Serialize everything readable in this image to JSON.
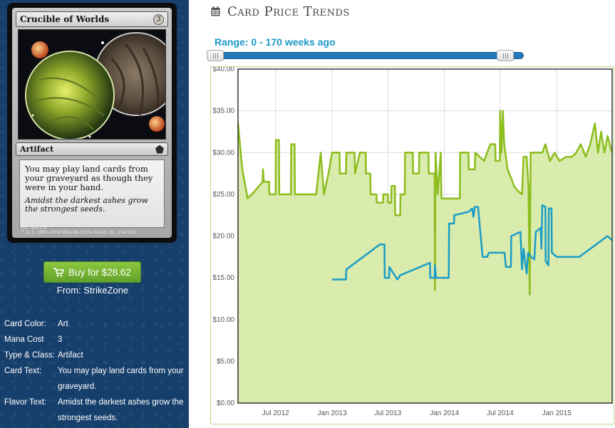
{
  "card": {
    "name": "Crucible of Worlds",
    "mana": "3",
    "type_line": "Artifact",
    "rules_text": "You may play land cards from your graveyard as though they were in your hand.",
    "flavor_text": "Amidst the darkest ashes grow the strongest seeds.",
    "artist": "Ron Spencer",
    "copyright": "™ & © 1993–2004 Wizards of the Coast, Inc. 114/165"
  },
  "buy": {
    "label": "Buy for $28.62",
    "icon": "cart-icon",
    "from": "From: StrikeZone"
  },
  "details": [
    {
      "label": "Card Color:",
      "value": "Art"
    },
    {
      "label": "Mana Cost",
      "value": "3"
    },
    {
      "label": "Type & Class:",
      "value": "Artifact"
    },
    {
      "label": "Card Text:",
      "value": "You may play land cards from your graveyard."
    },
    {
      "label": "Flavor Text:",
      "value": "Amidst the darkest ashes grow the strongest seeds."
    }
  ],
  "heading": {
    "title": "Card Price Trends",
    "icon": "calendar-icon"
  },
  "range": {
    "label": "Range: 0 - 170 weeks ago",
    "min": 0,
    "max": 170,
    "low": 0,
    "high": 170
  },
  "colors": {
    "green_series": "#8cbd1c",
    "green_fill": "#d4e8a2",
    "blue_series": "#1b9dc6",
    "button": "#6fb232",
    "range_text": "#1997c6"
  },
  "chart_data": {
    "type": "line",
    "x_ticks": [
      "Jul 2012",
      "Jan 2013",
      "Jul 2013",
      "Jan 2014",
      "Jul 2014",
      "Jan 2015"
    ],
    "xlim": [
      "2012-03-01",
      "2015-06-30"
    ],
    "y_ticks": [
      "$0.00",
      "$5.00",
      "$10.00",
      "$15.00",
      "$20.00",
      "$25.00",
      "$30.00",
      "$35.00",
      "$40.00"
    ],
    "ylim": [
      0,
      40
    ],
    "grid": true,
    "series": [
      {
        "color": "#8cbd1c",
        "fill": "#d4e8a2",
        "points": [
          [
            "2012-03-01",
            33.5
          ],
          [
            "2012-03-15",
            28.0
          ],
          [
            "2012-04-01",
            24.5
          ],
          [
            "2012-04-20",
            25.2
          ],
          [
            "2012-05-20",
            26.5
          ],
          [
            "2012-05-21",
            28.0
          ],
          [
            "2012-05-24",
            26.5
          ],
          [
            "2012-06-10",
            26.5
          ],
          [
            "2012-06-11",
            25.0
          ],
          [
            "2012-07-01",
            25.0
          ],
          [
            "2012-07-02",
            31.5
          ],
          [
            "2012-07-12",
            31.5
          ],
          [
            "2012-07-13",
            25.0
          ],
          [
            "2012-08-20",
            25.0
          ],
          [
            "2012-08-21",
            31.0
          ],
          [
            "2012-09-01",
            31.0
          ],
          [
            "2012-09-02",
            25.0
          ],
          [
            "2012-11-10",
            25.0
          ],
          [
            "2012-11-25",
            30.0
          ],
          [
            "2012-12-05",
            25.0
          ],
          [
            "2012-12-20",
            27.5
          ],
          [
            "2013-01-01",
            30.0
          ],
          [
            "2013-01-25",
            30.0
          ],
          [
            "2013-01-26",
            27.5
          ],
          [
            "2013-02-15",
            27.5
          ],
          [
            "2013-02-16",
            30.0
          ],
          [
            "2013-03-15",
            30.0
          ],
          [
            "2013-03-16",
            27.5
          ],
          [
            "2013-04-01",
            30.0
          ],
          [
            "2013-04-20",
            30.0
          ],
          [
            "2013-04-21",
            27.5
          ],
          [
            "2013-05-05",
            27.5
          ],
          [
            "2013-05-06",
            25.0
          ],
          [
            "2013-05-25",
            25.0
          ],
          [
            "2013-05-26",
            24.0
          ],
          [
            "2013-06-15",
            24.0
          ],
          [
            "2013-06-16",
            25.0
          ],
          [
            "2013-07-01",
            25.0
          ],
          [
            "2013-07-02",
            24.0
          ],
          [
            "2013-07-12",
            24.0
          ],
          [
            "2013-07-13",
            26.0
          ],
          [
            "2013-07-24",
            26.0
          ],
          [
            "2013-07-25",
            22.5
          ],
          [
            "2013-08-10",
            22.5
          ],
          [
            "2013-08-11",
            25.0
          ],
          [
            "2013-08-25",
            25.0
          ],
          [
            "2013-08-26",
            30.0
          ],
          [
            "2013-09-20",
            30.0
          ],
          [
            "2013-09-21",
            27.5
          ],
          [
            "2013-10-10",
            27.5
          ],
          [
            "2013-10-11",
            30.0
          ],
          [
            "2013-11-10",
            30.0
          ],
          [
            "2013-11-11",
            27.5
          ],
          [
            "2013-11-30",
            27.5
          ],
          [
            "2013-12-01",
            13.5
          ],
          [
            "2013-12-03",
            30.0
          ],
          [
            "2013-12-10",
            25.0
          ],
          [
            "2013-12-20",
            30.0
          ],
          [
            "2013-12-22",
            24.5
          ],
          [
            "2014-02-20",
            24.5
          ],
          [
            "2014-02-21",
            30.0
          ],
          [
            "2014-03-20",
            30.0
          ],
          [
            "2014-03-21",
            28.0
          ],
          [
            "2014-04-10",
            28.0
          ],
          [
            "2014-04-11",
            30.0
          ],
          [
            "2014-05-10",
            29.0
          ],
          [
            "2014-05-30",
            31.0
          ],
          [
            "2014-06-15",
            31.0
          ],
          [
            "2014-06-16",
            29.0
          ],
          [
            "2014-06-30",
            29.0
          ],
          [
            "2014-07-01",
            35.0
          ],
          [
            "2014-07-05",
            30.0
          ],
          [
            "2014-07-10",
            35.0
          ],
          [
            "2014-07-14",
            31.0
          ],
          [
            "2014-07-25",
            28.0
          ],
          [
            "2014-08-05",
            27.0
          ],
          [
            "2014-08-15",
            26.0
          ],
          [
            "2014-08-25",
            25.5
          ],
          [
            "2014-09-10",
            25.0
          ],
          [
            "2014-09-15",
            29.5
          ],
          [
            "2014-09-25",
            29.5
          ],
          [
            "2014-10-01",
            26.0
          ],
          [
            "2014-10-05",
            13.0
          ],
          [
            "2014-10-08",
            30.0
          ],
          [
            "2014-11-15",
            30.0
          ],
          [
            "2014-11-25",
            31.0
          ],
          [
            "2014-12-10",
            29.0
          ],
          [
            "2014-12-25",
            30.0
          ],
          [
            "2015-01-10",
            29.0
          ],
          [
            "2015-02-01",
            29.5
          ],
          [
            "2015-02-20",
            29.5
          ],
          [
            "2015-03-05",
            30.0
          ],
          [
            "2015-03-20",
            31.0
          ],
          [
            "2015-04-05",
            29.5
          ],
          [
            "2015-04-20",
            31.0
          ],
          [
            "2015-05-05",
            33.5
          ],
          [
            "2015-05-15",
            30.0
          ],
          [
            "2015-05-25",
            32.5
          ],
          [
            "2015-06-05",
            30.0
          ],
          [
            "2015-06-15",
            32.0
          ],
          [
            "2015-06-30",
            30.0
          ]
        ]
      },
      {
        "color": "#1b9dc6",
        "points": [
          [
            "2013-01-01",
            14.8
          ],
          [
            "2013-02-15",
            14.8
          ],
          [
            "2013-02-16",
            16.0
          ],
          [
            "2013-06-05",
            19.0
          ],
          [
            "2013-06-20",
            19.0
          ],
          [
            "2013-06-21",
            15.0
          ],
          [
            "2013-07-05",
            15.0
          ],
          [
            "2013-07-06",
            16.3
          ],
          [
            "2013-08-01",
            14.8
          ],
          [
            "2013-08-10",
            15.3
          ],
          [
            "2013-11-15",
            16.8
          ],
          [
            "2013-11-16",
            15.0
          ],
          [
            "2013-11-30",
            15.0
          ],
          [
            "2013-12-01",
            16.5
          ],
          [
            "2013-12-05",
            15.0
          ],
          [
            "2014-01-15",
            15.0
          ],
          [
            "2014-01-16",
            21.5
          ],
          [
            "2014-02-01",
            21.5
          ],
          [
            "2014-02-02",
            22.5
          ],
          [
            "2014-03-20",
            22.9
          ],
          [
            "2014-04-01",
            23.3
          ],
          [
            "2014-04-05",
            22.3
          ],
          [
            "2014-04-10",
            23.5
          ],
          [
            "2014-04-20",
            23.5
          ],
          [
            "2014-05-05",
            17.5
          ],
          [
            "2014-05-20",
            17.5
          ],
          [
            "2014-05-25",
            18.0
          ],
          [
            "2014-07-15",
            18.0
          ],
          [
            "2014-07-20",
            16.3
          ],
          [
            "2014-08-05",
            16.3
          ],
          [
            "2014-08-06",
            20.0
          ],
          [
            "2014-09-05",
            20.5
          ],
          [
            "2014-09-10",
            16.0
          ],
          [
            "2014-09-15",
            18.5
          ],
          [
            "2014-09-25",
            15.5
          ],
          [
            "2014-09-30",
            18.0
          ],
          [
            "2014-10-10",
            17.5
          ],
          [
            "2014-10-20",
            17.2
          ],
          [
            "2014-10-25",
            20.5
          ],
          [
            "2014-11-10",
            21.0
          ],
          [
            "2014-11-12",
            18.5
          ],
          [
            "2014-11-15",
            23.7
          ],
          [
            "2014-11-25",
            23.5
          ],
          [
            "2014-11-26",
            17.0
          ],
          [
            "2014-12-05",
            16.5
          ],
          [
            "2014-12-06",
            23.3
          ],
          [
            "2014-12-15",
            23.3
          ],
          [
            "2014-12-16",
            18.0
          ],
          [
            "2015-01-01",
            17.5
          ],
          [
            "2015-03-15",
            17.5
          ],
          [
            "2015-06-15",
            20.0
          ],
          [
            "2015-06-30",
            19.5
          ]
        ]
      }
    ]
  }
}
